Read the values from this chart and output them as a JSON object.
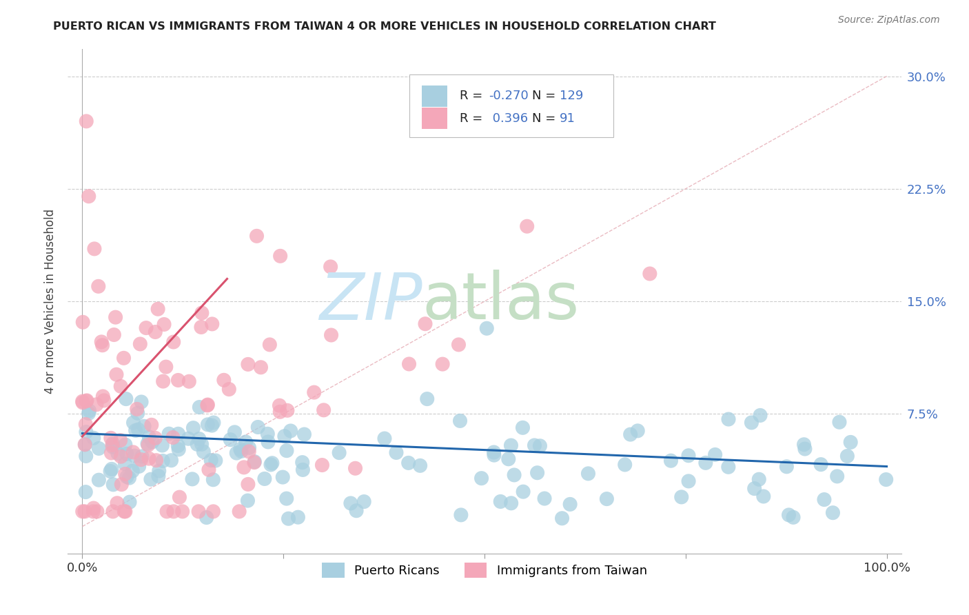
{
  "title": "PUERTO RICAN VS IMMIGRANTS FROM TAIWAN 4 OR MORE VEHICLES IN HOUSEHOLD CORRELATION CHART",
  "source": "Source: ZipAtlas.com",
  "ylabel": "4 or more Vehicles in Household",
  "yticks": [
    "7.5%",
    "15.0%",
    "22.5%",
    "30.0%"
  ],
  "ytick_vals": [
    0.075,
    0.15,
    0.225,
    0.3
  ],
  "legend_label1": "Puerto Ricans",
  "legend_label2": "Immigrants from Taiwan",
  "R1": -0.27,
  "N1": 129,
  "R2": 0.396,
  "N2": 91,
  "color_blue": "#a8cfe0",
  "color_pink": "#f4a7b9",
  "color_blue_line": "#2166ac",
  "color_pink_line": "#d9526e",
  "diag_color": "#f0b8c0"
}
